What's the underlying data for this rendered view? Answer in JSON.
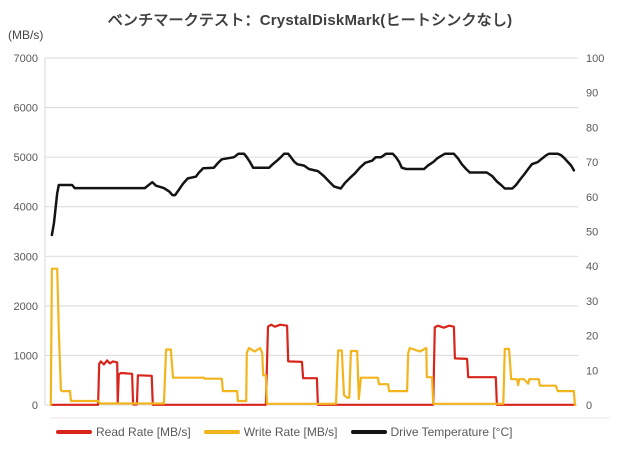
{
  "chart_data": {
    "type": "line",
    "title": "ベンチマークテスト：CrystalDiskMark(ヒートシンクなし)",
    "left_axis": {
      "unit": "(MB/s)",
      "min": 0,
      "max": 7000,
      "ticks": [
        7000,
        6000,
        5000,
        4000,
        3000,
        2000,
        1000,
        0
      ]
    },
    "right_axis": {
      "min": 0,
      "max": 100,
      "ticks": [
        100,
        90,
        80,
        70,
        60,
        50,
        40,
        30,
        20,
        10,
        0
      ]
    },
    "x_axis": {
      "visible": false,
      "min": 0,
      "max": 100
    },
    "grid": {
      "horizontal": true,
      "vertical": false
    },
    "legend_position": "bottom",
    "colors": {
      "grid": "#D9D9D9",
      "axis_text": "#595959",
      "title_text": "#3F3F3F",
      "background": "#FFFFFF",
      "read": "#D7251C",
      "write": "#F2B51D",
      "temperature": "#141414"
    },
    "series": [
      {
        "id": "read-rate",
        "name": "Read Rate [MB/s]",
        "axis": "left",
        "color": "#D7251C",
        "width": 2.2,
        "points": [
          [
            1.3,
            5
          ],
          [
            10,
            5
          ],
          [
            10.2,
            830
          ],
          [
            10.5,
            880
          ],
          [
            11.1,
            820
          ],
          [
            11.7,
            900
          ],
          [
            12.2,
            840
          ],
          [
            12.8,
            880
          ],
          [
            13.6,
            860
          ],
          [
            13.7,
            30
          ],
          [
            13.9,
            620
          ],
          [
            14.3,
            645
          ],
          [
            16.4,
            630
          ],
          [
            16.6,
            10
          ],
          [
            17.3,
            10
          ],
          [
            17.5,
            600
          ],
          [
            20.1,
            590
          ],
          [
            20.3,
            5
          ],
          [
            41.6,
            5
          ],
          [
            42,
            1580
          ],
          [
            42.6,
            1620
          ],
          [
            43.3,
            1580
          ],
          [
            44.3,
            1620
          ],
          [
            45.6,
            1600
          ],
          [
            45.8,
            880
          ],
          [
            48.4,
            870
          ],
          [
            48.6,
            540
          ],
          [
            51.2,
            540
          ],
          [
            51.4,
            5
          ],
          [
            73.1,
            5
          ],
          [
            73.4,
            1570
          ],
          [
            74,
            1600
          ],
          [
            75.1,
            1560
          ],
          [
            76.1,
            1600
          ],
          [
            77,
            1580
          ],
          [
            77.2,
            940
          ],
          [
            79.5,
            930
          ],
          [
            79.7,
            560
          ],
          [
            84.9,
            560
          ],
          [
            85.1,
            5
          ],
          [
            99.8,
            5
          ]
        ]
      },
      {
        "id": "write-rate",
        "name": "Write Rate [MB/s]",
        "axis": "left",
        "color": "#F2B51D",
        "width": 2.2,
        "points": [
          [
            1.1,
            0
          ],
          [
            1.3,
            2750
          ],
          [
            2.3,
            2750
          ],
          [
            2.6,
            1500
          ],
          [
            3,
            300
          ],
          [
            3.2,
            280
          ],
          [
            4.7,
            280
          ],
          [
            4.9,
            80
          ],
          [
            10,
            80
          ],
          [
            10.4,
            30
          ],
          [
            22.4,
            30
          ],
          [
            22.8,
            1120
          ],
          [
            23.7,
            1120
          ],
          [
            24.1,
            550
          ],
          [
            29.9,
            550
          ],
          [
            30.1,
            530
          ],
          [
            33.3,
            530
          ],
          [
            33.5,
            280
          ],
          [
            36.2,
            280
          ],
          [
            36.3,
            80
          ],
          [
            37.9,
            80
          ],
          [
            38,
            1050
          ],
          [
            38.4,
            1150
          ],
          [
            39.5,
            1080
          ],
          [
            40.5,
            1150
          ],
          [
            40.9,
            1050
          ],
          [
            41.1,
            600
          ],
          [
            41.6,
            600
          ],
          [
            41.8,
            25
          ],
          [
            54.8,
            25
          ],
          [
            55.2,
            1100
          ],
          [
            55.9,
            1100
          ],
          [
            56.3,
            200
          ],
          [
            56.9,
            150
          ],
          [
            57.3,
            150
          ],
          [
            57.6,
            1090
          ],
          [
            58.8,
            1090
          ],
          [
            59.1,
            120
          ],
          [
            59.5,
            550
          ],
          [
            62.7,
            550
          ],
          [
            62.9,
            420
          ],
          [
            64.6,
            420
          ],
          [
            64.8,
            280
          ],
          [
            68.2,
            280
          ],
          [
            68.4,
            1050
          ],
          [
            68.7,
            1150
          ],
          [
            70.6,
            1080
          ],
          [
            71.8,
            1150
          ],
          [
            71.9,
            560
          ],
          [
            72.9,
            560
          ],
          [
            73.1,
            25
          ],
          [
            86.3,
            25
          ],
          [
            86.6,
            1130
          ],
          [
            87.4,
            1130
          ],
          [
            87.8,
            520
          ],
          [
            88.9,
            520
          ],
          [
            89.1,
            400
          ],
          [
            89.3,
            520
          ],
          [
            90.2,
            520
          ],
          [
            91,
            430
          ],
          [
            91.2,
            520
          ],
          [
            93,
            520
          ],
          [
            93.2,
            390
          ],
          [
            96.2,
            390
          ],
          [
            96.6,
            280
          ],
          [
            99.6,
            280
          ],
          [
            99.8,
            0
          ]
        ]
      },
      {
        "id": "drive-temperature",
        "name": "Drive Temperature [°C]",
        "axis": "right",
        "color": "#141414",
        "width": 2.5,
        "points": [
          [
            1.3,
            49
          ],
          [
            1.7,
            52.5
          ],
          [
            2.3,
            61
          ],
          [
            2.6,
            63.4
          ],
          [
            5.1,
            63.4
          ],
          [
            5.6,
            62.5
          ],
          [
            18.8,
            62.5
          ],
          [
            19.6,
            63.5
          ],
          [
            20.2,
            64.2
          ],
          [
            20.9,
            63.2
          ],
          [
            22.4,
            62.5
          ],
          [
            23.4,
            61.5
          ],
          [
            24,
            60.5
          ],
          [
            24.5,
            60.5
          ],
          [
            25.2,
            62
          ],
          [
            26,
            63.8
          ],
          [
            26.9,
            65.3
          ],
          [
            28.4,
            65.8
          ],
          [
            29,
            67
          ],
          [
            29.8,
            68.2
          ],
          [
            31.8,
            68.4
          ],
          [
            32.6,
            69.8
          ],
          [
            33.3,
            70.8
          ],
          [
            35.6,
            71.4
          ],
          [
            36.4,
            72.4
          ],
          [
            37.5,
            72.4
          ],
          [
            38,
            71.4
          ],
          [
            38.6,
            70
          ],
          [
            39.2,
            68.4
          ],
          [
            42.2,
            68.4
          ],
          [
            42.9,
            69.4
          ],
          [
            43.7,
            70.4
          ],
          [
            44.4,
            71.4
          ],
          [
            45,
            72.4
          ],
          [
            45.8,
            72.4
          ],
          [
            46.3,
            71.4
          ],
          [
            46.9,
            70.2
          ],
          [
            47.5,
            69.4
          ],
          [
            48.8,
            69
          ],
          [
            49.7,
            68
          ],
          [
            51.4,
            67.4
          ],
          [
            52.5,
            66
          ],
          [
            53.5,
            64.4
          ],
          [
            54.4,
            63
          ],
          [
            55.7,
            62.4
          ],
          [
            56.5,
            64
          ],
          [
            57.4,
            65.4
          ],
          [
            58.4,
            66.8
          ],
          [
            59.3,
            68.4
          ],
          [
            60.3,
            69.8
          ],
          [
            61.6,
            70.4
          ],
          [
            62.3,
            71.4
          ],
          [
            63.3,
            71.4
          ],
          [
            64.2,
            72.4
          ],
          [
            65.5,
            72.4
          ],
          [
            66.1,
            71.4
          ],
          [
            66.7,
            70
          ],
          [
            67.2,
            68.4
          ],
          [
            68,
            68
          ],
          [
            71.4,
            68
          ],
          [
            72.1,
            69
          ],
          [
            73.1,
            70
          ],
          [
            73.8,
            71
          ],
          [
            74.6,
            71.8
          ],
          [
            75.3,
            72.4
          ],
          [
            77,
            72.4
          ],
          [
            77.8,
            71
          ],
          [
            78.5,
            69.4
          ],
          [
            79.3,
            68
          ],
          [
            80,
            67
          ],
          [
            83.2,
            67
          ],
          [
            84.2,
            66
          ],
          [
            85.1,
            64.4
          ],
          [
            85.9,
            63.4
          ],
          [
            86.6,
            62.4
          ],
          [
            88,
            62.4
          ],
          [
            88.7,
            63.4
          ],
          [
            89.5,
            65
          ],
          [
            90.2,
            66.4
          ],
          [
            91,
            68
          ],
          [
            91.7,
            69.4
          ],
          [
            92.8,
            70
          ],
          [
            93.6,
            71
          ],
          [
            94.4,
            72
          ],
          [
            94.9,
            72.4
          ],
          [
            96.6,
            72.4
          ],
          [
            97.2,
            72
          ],
          [
            97.9,
            71
          ],
          [
            98.5,
            70
          ],
          [
            99.1,
            69
          ],
          [
            99.6,
            67.6
          ]
        ]
      }
    ]
  }
}
